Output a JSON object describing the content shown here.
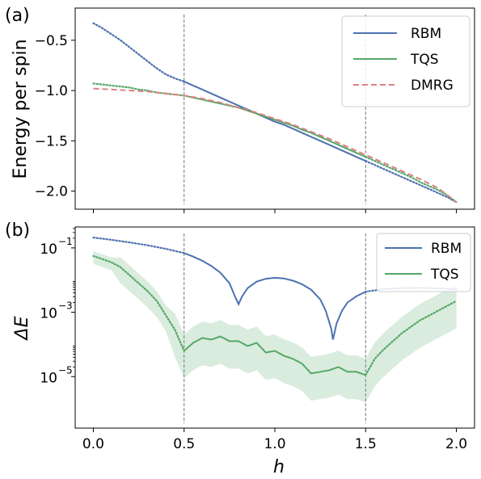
{
  "chart_data": [
    {
      "type": "line",
      "panel_label": "(a)",
      "xlabel": "",
      "ylabel": "Energy per spin",
      "xlim": [
        -0.1,
        2.1
      ],
      "ylim": [
        -2.18,
        -0.18
      ],
      "yticks": [
        -0.5,
        -1.0,
        -1.5,
        -2.0
      ],
      "ytick_labels": [
        "−0.5",
        "−1.0",
        "−1.5",
        "−2.0"
      ],
      "vlines": [
        0.5,
        1.5
      ],
      "legend_position": "top-right",
      "series": [
        {
          "name": "RBM",
          "color": "#4c72b0",
          "x": [
            0.0,
            0.05,
            0.1,
            0.15,
            0.2,
            0.25,
            0.3,
            0.35,
            0.4,
            0.45,
            0.5,
            0.55,
            0.6,
            0.65,
            0.7,
            0.75,
            0.8,
            0.85,
            0.9,
            0.95,
            1.0,
            1.05,
            1.1,
            1.15,
            1.2,
            1.25,
            1.3,
            1.35,
            1.4,
            1.45,
            1.5,
            1.55,
            1.6,
            1.65,
            1.7,
            1.75,
            1.8,
            1.85,
            1.9,
            1.95,
            2.0
          ],
          "y": [
            -0.33,
            -0.38,
            -0.44,
            -0.5,
            -0.57,
            -0.64,
            -0.71,
            -0.78,
            -0.84,
            -0.88,
            -0.91,
            -0.95,
            -0.99,
            -1.03,
            -1.07,
            -1.11,
            -1.15,
            -1.19,
            -1.23,
            -1.27,
            -1.31,
            -1.34,
            -1.38,
            -1.42,
            -1.46,
            -1.5,
            -1.54,
            -1.58,
            -1.62,
            -1.66,
            -1.7,
            -1.74,
            -1.78,
            -1.82,
            -1.86,
            -1.9,
            -1.94,
            -1.98,
            -2.02,
            -2.06,
            -2.11
          ]
        },
        {
          "name": "TQS",
          "color": "#55a868",
          "x": [
            0.0,
            0.05,
            0.1,
            0.15,
            0.2,
            0.25,
            0.3,
            0.35,
            0.4,
            0.45,
            0.5,
            0.55,
            0.6,
            0.65,
            0.7,
            0.75,
            0.8,
            0.85,
            0.9,
            0.95,
            1.0,
            1.05,
            1.1,
            1.15,
            1.2,
            1.25,
            1.3,
            1.35,
            1.4,
            1.45,
            1.5,
            1.55,
            1.6,
            1.65,
            1.7,
            1.75,
            1.8,
            1.85,
            1.9,
            1.95,
            2.0
          ],
          "y": [
            -0.93,
            -0.94,
            -0.95,
            -0.96,
            -0.97,
            -0.99,
            -1.0,
            -1.02,
            -1.03,
            -1.04,
            -1.05,
            -1.07,
            -1.09,
            -1.11,
            -1.13,
            -1.15,
            -1.17,
            -1.2,
            -1.23,
            -1.26,
            -1.29,
            -1.32,
            -1.35,
            -1.39,
            -1.42,
            -1.46,
            -1.5,
            -1.54,
            -1.58,
            -1.62,
            -1.66,
            -1.7,
            -1.74,
            -1.78,
            -1.82,
            -1.86,
            -1.91,
            -1.95,
            -1.99,
            -2.04,
            -2.11
          ]
        },
        {
          "name": "DMRG",
          "color": "#dd8080",
          "x": [
            0.0,
            0.1,
            0.2,
            0.3,
            0.4,
            0.5,
            0.6,
            0.7,
            0.8,
            0.9,
            1.0,
            1.1,
            1.2,
            1.3,
            1.4,
            1.5,
            1.6,
            1.7,
            1.8,
            1.9,
            2.0
          ],
          "y": [
            -0.98,
            -0.99,
            -1.0,
            -1.01,
            -1.03,
            -1.05,
            -1.08,
            -1.12,
            -1.17,
            -1.22,
            -1.28,
            -1.34,
            -1.41,
            -1.48,
            -1.56,
            -1.64,
            -1.72,
            -1.8,
            -1.88,
            -1.97,
            -2.11
          ]
        }
      ]
    },
    {
      "type": "line",
      "panel_label": "(b)",
      "xlabel": "h",
      "ylabel": "ΔE",
      "yscale": "log",
      "xlim": [
        -0.1,
        2.1
      ],
      "ylim_log10": [
        -6.6,
        -0.35
      ],
      "xticks": [
        0.0,
        0.5,
        1.0,
        1.5,
        2.0
      ],
      "xtick_labels": [
        "0.0",
        "0.5",
        "1.0",
        "1.5",
        "2.0"
      ],
      "yticks_log10": [
        -1,
        -3,
        -5
      ],
      "ytick_base": "10",
      "ytick_exponents": [
        "−1",
        "−3",
        "−5"
      ],
      "vlines": [
        0.5,
        1.5
      ],
      "legend_position": "top-right",
      "series": [
        {
          "name": "RBM",
          "color": "#4c72b0",
          "x": [
            0.0,
            0.1,
            0.2,
            0.3,
            0.4,
            0.5,
            0.55,
            0.6,
            0.65,
            0.7,
            0.75,
            0.78,
            0.8,
            0.82,
            0.85,
            0.9,
            0.95,
            1.0,
            1.05,
            1.1,
            1.15,
            1.2,
            1.25,
            1.28,
            1.31,
            1.32,
            1.34,
            1.37,
            1.4,
            1.45,
            1.5,
            1.6,
            1.7,
            1.8,
            1.9,
            2.0
          ],
          "y_log10": [
            -0.68,
            -0.75,
            -0.83,
            -0.92,
            -1.03,
            -1.16,
            -1.27,
            -1.4,
            -1.56,
            -1.77,
            -2.1,
            -2.5,
            -2.75,
            -2.5,
            -2.25,
            -2.05,
            -1.96,
            -1.93,
            -1.95,
            -2.02,
            -2.13,
            -2.3,
            -2.6,
            -2.95,
            -3.5,
            -3.85,
            -3.35,
            -2.95,
            -2.7,
            -2.5,
            -2.36,
            -2.28,
            -2.25,
            -2.24,
            -2.26,
            -2.28
          ]
        },
        {
          "name": "TQS",
          "color": "#55a868",
          "x": [
            0.0,
            0.05,
            0.1,
            0.15,
            0.2,
            0.25,
            0.3,
            0.35,
            0.4,
            0.45,
            0.5,
            0.55,
            0.6,
            0.65,
            0.7,
            0.75,
            0.8,
            0.85,
            0.9,
            0.95,
            1.0,
            1.05,
            1.1,
            1.15,
            1.2,
            1.25,
            1.3,
            1.35,
            1.4,
            1.45,
            1.5,
            1.55,
            1.6,
            1.65,
            1.7,
            1.75,
            1.8,
            1.85,
            1.9,
            1.95,
            2.0
          ],
          "y_log10": [
            -1.25,
            -1.35,
            -1.45,
            -1.6,
            -1.85,
            -2.1,
            -2.35,
            -2.65,
            -3.1,
            -3.55,
            -4.2,
            -3.95,
            -3.8,
            -3.85,
            -3.75,
            -3.9,
            -3.9,
            -4.05,
            -3.95,
            -4.25,
            -4.2,
            -4.35,
            -4.45,
            -4.6,
            -4.9,
            -4.85,
            -4.8,
            -4.7,
            -4.85,
            -4.85,
            -4.95,
            -4.45,
            -4.15,
            -3.9,
            -3.65,
            -3.45,
            -3.25,
            -3.1,
            -2.95,
            -2.8,
            -2.65
          ]
        }
      ]
    }
  ]
}
